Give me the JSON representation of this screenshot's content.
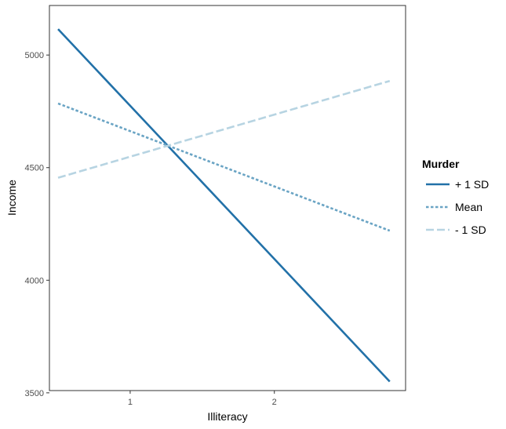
{
  "chart_data": {
    "type": "line",
    "title": "",
    "xlabel": "Illiteracy",
    "ylabel": "Income",
    "xlim": [
      0.44,
      2.91
    ],
    "ylim": [
      3510,
      5220
    ],
    "x_ticks": [
      1,
      2
    ],
    "x_tick_labels": [
      "1",
      "2"
    ],
    "y_ticks": [
      3500,
      4000,
      4500,
      5000
    ],
    "y_tick_labels": [
      "3500",
      "4000",
      "4500",
      "5000"
    ],
    "grid": false,
    "legend": {
      "title": "Murder",
      "placement": "right"
    },
    "series": [
      {
        "name": "+ 1 SD",
        "color": "#2271a8",
        "dash": "solid",
        "x": [
          0.5,
          2.8
        ],
        "y": [
          5115,
          3550
        ]
      },
      {
        "name": "Mean",
        "color": "#6aa4c4",
        "dash": "dotted",
        "x": [
          0.5,
          2.8
        ],
        "y": [
          4785,
          4220
        ]
      },
      {
        "name": "- 1 SD",
        "color": "#b7d4e2",
        "dash": "dashed",
        "x": [
          0.5,
          2.8
        ],
        "y": [
          4455,
          4885
        ]
      }
    ]
  }
}
